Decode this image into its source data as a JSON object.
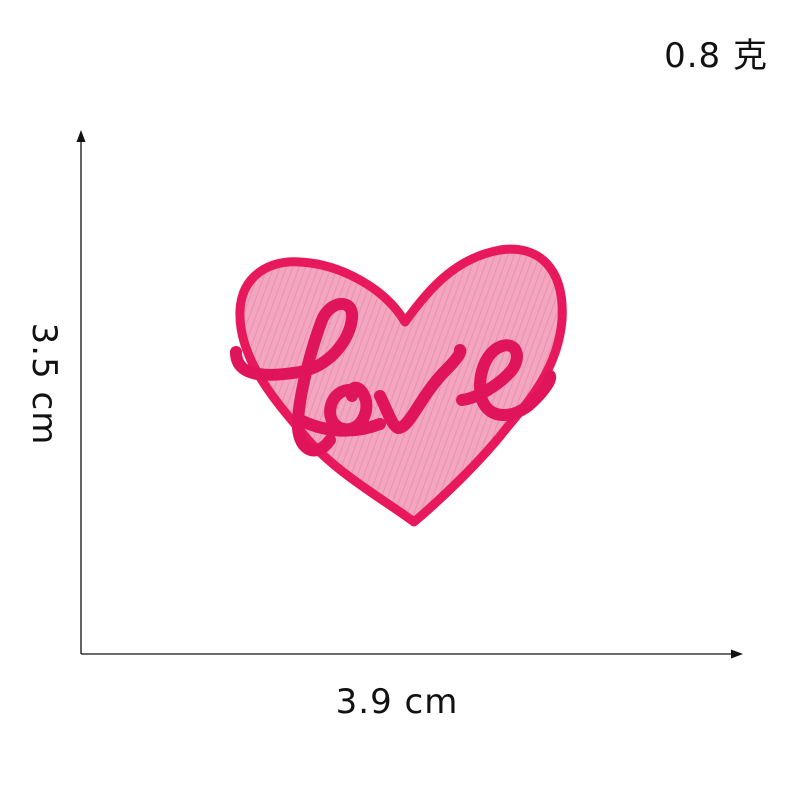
{
  "weight": {
    "text": "0.8 克"
  },
  "dimensions": {
    "width_text": "3.9 cm",
    "height_text": "3.5 cm"
  },
  "patch": {
    "word": "love",
    "colors": {
      "outline": "#e8185c",
      "fill": "#f2a6c0",
      "fill_shade": "#ec8fb0",
      "lettering": "#e0145a"
    }
  },
  "colors": {
    "axis": "#111111",
    "background": "#ffffff"
  }
}
